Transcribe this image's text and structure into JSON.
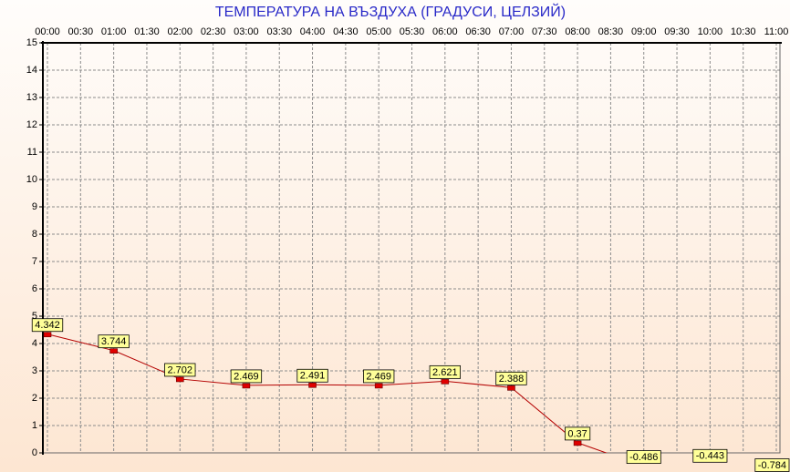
{
  "chart_data": {
    "type": "line",
    "title": "ТЕМПЕРАТУРА НА ВЪЗДУХА  (ГРАДУСИ, ЦЕЛЗИЙ)",
    "categories": [
      "00:00",
      "00:30",
      "01:00",
      "01:30",
      "02:00",
      "02:30",
      "03:00",
      "03:30",
      "04:00",
      "04:30",
      "05:00",
      "05:30",
      "06:00",
      "06:30",
      "07:00",
      "07:30",
      "08:00",
      "08:30",
      "09:00",
      "09:30",
      "10:00",
      "10:30",
      "11:00"
    ],
    "series": [
      {
        "color": "#b40000",
        "x": [
          "00:00",
          "01:00",
          "02:00",
          "03:00",
          "04:00",
          "05:00",
          "06:00",
          "07:00",
          "08:00",
          "09:00",
          "10:00",
          "11:00"
        ],
        "values": [
          4.342,
          3.744,
          2.702,
          2.469,
          2.491,
          2.469,
          2.621,
          2.388,
          0.37,
          -0.486,
          -0.443,
          -0.784
        ]
      }
    ],
    "ylim": [
      0,
      15
    ],
    "yticks": [
      0,
      1,
      2,
      3,
      4,
      5,
      6,
      7,
      8,
      9,
      10,
      11,
      12,
      13,
      14,
      15
    ],
    "grid": true
  }
}
